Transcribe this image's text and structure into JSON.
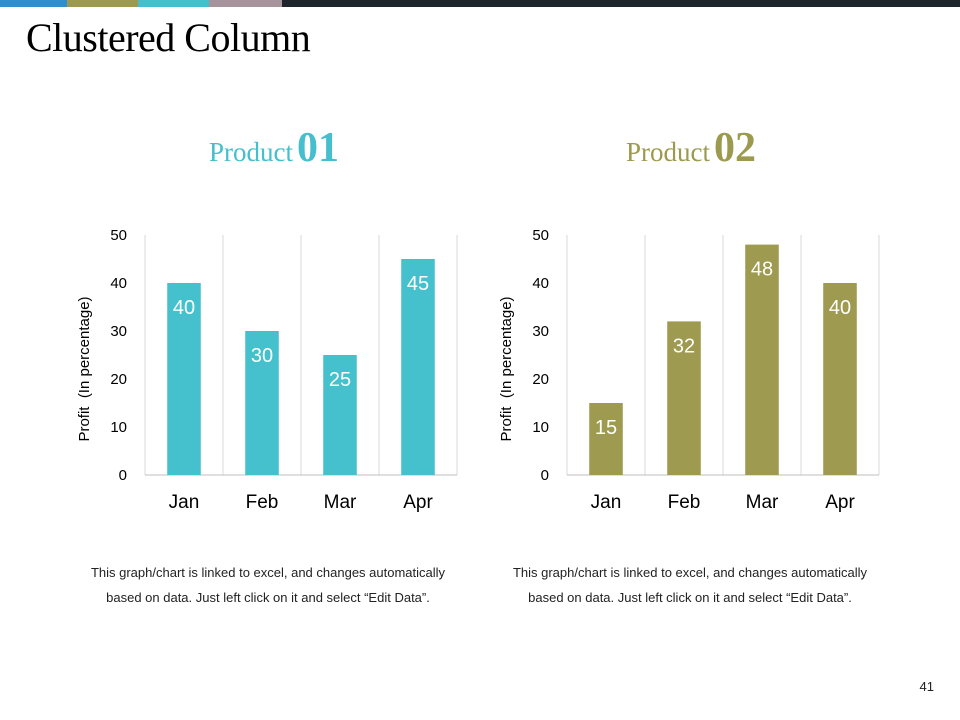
{
  "slide": {
    "title": "Clustered Column",
    "page_number": "41",
    "top_bar_colors": [
      "#2e8fd0",
      "#9c9a4e",
      "#45bfcd",
      "#a7939c",
      "#1f262b"
    ]
  },
  "captions": [
    "This graph/chart is linked to excel, and changes automatically based on data. Just left click on it and select “Edit Data”.",
    "This graph/chart is linked to excel, and changes automatically based on data. Just left click on it and select “Edit Data”."
  ],
  "chart_data": [
    {
      "type": "bar",
      "title_word": "Product",
      "title_number": "01",
      "title_color": "#45bfcd",
      "categories": [
        "Jan",
        "Feb",
        "Mar",
        "Apr"
      ],
      "values": [
        40,
        30,
        25,
        45
      ],
      "ylabel": "Profit  (In percentage)",
      "ylim": [
        0,
        50
      ],
      "yticks": [
        0,
        10,
        20,
        30,
        40,
        50
      ],
      "bar_color": "#45c1ce",
      "data_labels": true,
      "grid": "vertical",
      "legend": "none"
    },
    {
      "type": "bar",
      "title_word": "Product",
      "title_number": "02",
      "title_color": "#9c9a4e",
      "categories": [
        "Jan",
        "Feb",
        "Mar",
        "Apr"
      ],
      "values": [
        15,
        32,
        48,
        40
      ],
      "ylabel": "Profit  (In percentage)",
      "ylim": [
        0,
        50
      ],
      "yticks": [
        0,
        10,
        20,
        30,
        40,
        50
      ],
      "bar_color": "#9e9a4f",
      "data_labels": true,
      "grid": "vertical",
      "legend": "none"
    }
  ]
}
